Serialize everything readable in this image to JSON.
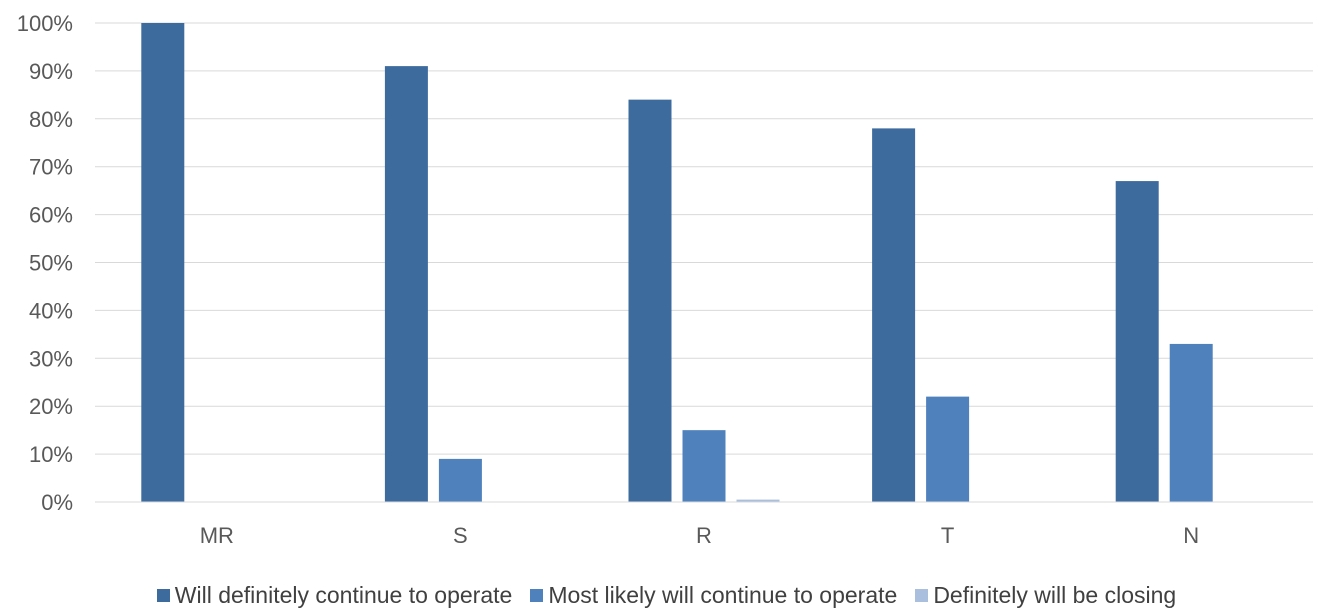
{
  "chart_data": {
    "type": "bar",
    "categories": [
      "MR",
      "S",
      "R",
      "T",
      "N"
    ],
    "series": [
      {
        "name": "Will definitely continue to operate",
        "values": [
          100,
          91,
          84,
          78,
          67
        ],
        "color": "#3e6b9e"
      },
      {
        "name": "Most likely will continue to operate",
        "values": [
          0,
          9,
          15,
          22,
          33
        ],
        "color": "#4f81bd"
      },
      {
        "name": "Definitely will be closing",
        "values": [
          0,
          0,
          0.5,
          0,
          0
        ],
        "color": "#a9bfdd"
      }
    ],
    "y_ticks": [
      "0%",
      "10%",
      "20%",
      "30%",
      "40%",
      "50%",
      "60%",
      "70%",
      "80%",
      "90%",
      "100%"
    ],
    "ylim": [
      0,
      100
    ],
    "y_unit": "percent",
    "grid": true,
    "legend_position": "bottom"
  }
}
